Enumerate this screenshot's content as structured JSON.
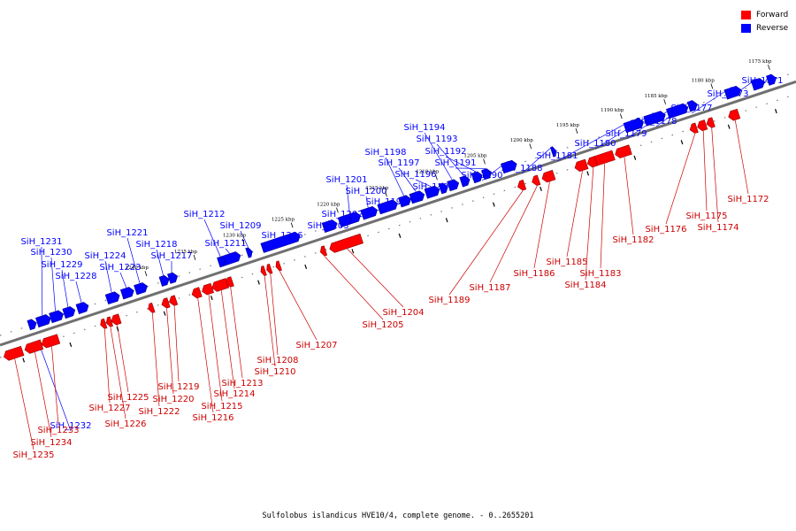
{
  "legend": {
    "forward_label": "Forward",
    "reverse_label": "Reverse",
    "forward_color": "#ff0000",
    "reverse_color": "#0000ff"
  },
  "caption": "Sulfolobus islandicus HVE10/4, complete genome. - 0..2655201",
  "ruler_ticks": [
    "1175 kbp",
    "1180 kbp",
    "1185 kbp",
    "1190 kbp",
    "1195 kbp",
    "1200 kbp",
    "1205 kbp",
    "1210 kbp",
    "1215 kbp",
    "1220 kbp",
    "1225 kbp",
    "1230 kbp",
    "1235 kbp",
    "1240 kbp"
  ],
  "forward_genes": [
    "SiH_1172",
    "SiH_1174",
    "SiH_1175",
    "SiH_1176",
    "SiH_1182",
    "SiH_1183",
    "SiH_1184",
    "SiH_1185",
    "SiH_1186",
    "SiH_1187",
    "SiH_1189",
    "SiH_1204",
    "SiH_1205",
    "SiH_1207",
    "SiH_1208",
    "SiH_1210",
    "SiH_1213",
    "SiH_1214",
    "SiH_1215",
    "SiH_1216",
    "SiH_1219",
    "SiH_1220",
    "SiH_1222",
    "SiH_1225",
    "SiH_1226",
    "SiH_1227",
    "SiH_1233",
    "SiH_1234",
    "SiH_1235"
  ],
  "reverse_genes": [
    "SiH_1171",
    "SiH_1173",
    "SiH_1177",
    "SiH_1178",
    "SiH_1179",
    "SiH_1180",
    "SiH_1181",
    "SiH_1188",
    "SiH_1190",
    "SiH_1191",
    "SiH_1192",
    "SiH_1193",
    "SiH_1194",
    "SiH_1195",
    "SiH_1196",
    "SiH_1197",
    "SiH_1198",
    "SiH_1199",
    "SiH_1200",
    "SiH_1201",
    "SiH_1202",
    "SiH_1203",
    "SiH_1206",
    "SiH_1209",
    "SiH_1211",
    "SiH_1212",
    "SiH_1217",
    "SiH_1218",
    "SiH_1221",
    "SiH_1223",
    "SiH_1224",
    "SiH_1228",
    "SiH_1229",
    "SiH_1230",
    "SiH_1231",
    "SiH_1232"
  ]
}
